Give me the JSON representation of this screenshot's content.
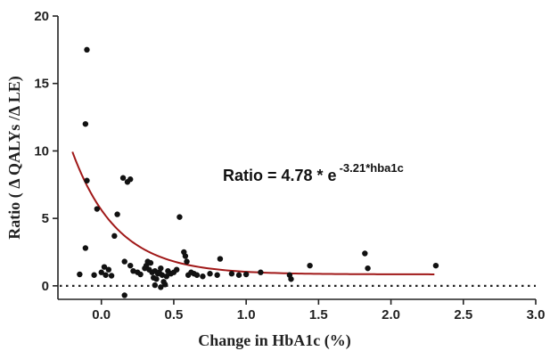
{
  "chart_data": {
    "type": "scatter",
    "xlabel": "Change in HbA1c (%)",
    "ylabel": "Ratio ( Δ QALYs /Δ LE)",
    "xlim": [
      -0.3,
      3.0
    ],
    "ylim": [
      -1,
      20
    ],
    "x_ticks": [
      "0.0",
      "0.5",
      "1.0",
      "1.5",
      "2.0",
      "2.5",
      "3.0"
    ],
    "x_tick_values": [
      0,
      0.5,
      1.0,
      1.5,
      2.0,
      2.5,
      3.0
    ],
    "y_ticks": [
      "0",
      "5",
      "10",
      "15",
      "20"
    ],
    "y_tick_values": [
      0,
      5,
      10,
      15,
      20
    ],
    "annotation": {
      "main": "Ratio = 4.78 * e",
      "exponent": "-3.21*hba1c"
    },
    "fit": {
      "a": 4.78,
      "b": -3.21,
      "c": 0.85,
      "x_start": -0.2,
      "x_end": 2.3,
      "color": "#a01818"
    },
    "reference_line_y": 0,
    "point_color": "#111111",
    "points": [
      [
        -0.1,
        17.5
      ],
      [
        -0.11,
        12.0
      ],
      [
        -0.1,
        7.8
      ],
      [
        -0.11,
        2.8
      ],
      [
        -0.15,
        0.85
      ],
      [
        -0.05,
        0.8
      ],
      [
        -0.03,
        5.7
      ],
      [
        0.0,
        1.0
      ],
      [
        0.02,
        1.4
      ],
      [
        0.03,
        0.8
      ],
      [
        0.05,
        1.2
      ],
      [
        0.07,
        0.75
      ],
      [
        0.09,
        3.7
      ],
      [
        0.11,
        5.3
      ],
      [
        0.15,
        8.0
      ],
      [
        0.18,
        7.7
      ],
      [
        0.2,
        7.9
      ],
      [
        0.16,
        1.8
      ],
      [
        0.2,
        1.5
      ],
      [
        0.22,
        1.1
      ],
      [
        0.25,
        1.0
      ],
      [
        0.27,
        0.85
      ],
      [
        0.3,
        1.3
      ],
      [
        0.31,
        1.5
      ],
      [
        0.32,
        1.8
      ],
      [
        0.33,
        1.2
      ],
      [
        0.34,
        1.7
      ],
      [
        0.35,
        1.0
      ],
      [
        0.36,
        0.6
      ],
      [
        0.37,
        1.1
      ],
      [
        0.38,
        0.5
      ],
      [
        0.39,
        0.9
      ],
      [
        0.4,
        1.0
      ],
      [
        0.41,
        1.3
      ],
      [
        0.42,
        0.8
      ],
      [
        0.43,
        0.3
      ],
      [
        0.44,
        0.1
      ],
      [
        0.45,
        0.7
      ],
      [
        0.46,
        1.1
      ],
      [
        0.48,
        0.9
      ],
      [
        0.5,
        1.0
      ],
      [
        0.52,
        1.2
      ],
      [
        0.54,
        5.1
      ],
      [
        0.57,
        2.5
      ],
      [
        0.58,
        2.2
      ],
      [
        0.59,
        1.8
      ],
      [
        0.6,
        0.8
      ],
      [
        0.62,
        1.0
      ],
      [
        0.64,
        0.9
      ],
      [
        0.66,
        0.8
      ],
      [
        0.7,
        0.7
      ],
      [
        0.75,
        0.9
      ],
      [
        0.8,
        0.8
      ],
      [
        0.82,
        2.0
      ],
      [
        0.9,
        0.9
      ],
      [
        0.95,
        0.8
      ],
      [
        1.0,
        0.85
      ],
      [
        1.1,
        1.0
      ],
      [
        1.3,
        0.8
      ],
      [
        1.31,
        0.5
      ],
      [
        1.44,
        1.5
      ],
      [
        1.82,
        2.4
      ],
      [
        1.84,
        1.3
      ],
      [
        2.31,
        1.5
      ],
      [
        0.16,
        -0.7
      ],
      [
        0.37,
        0.05
      ],
      [
        0.41,
        -0.1
      ]
    ]
  }
}
